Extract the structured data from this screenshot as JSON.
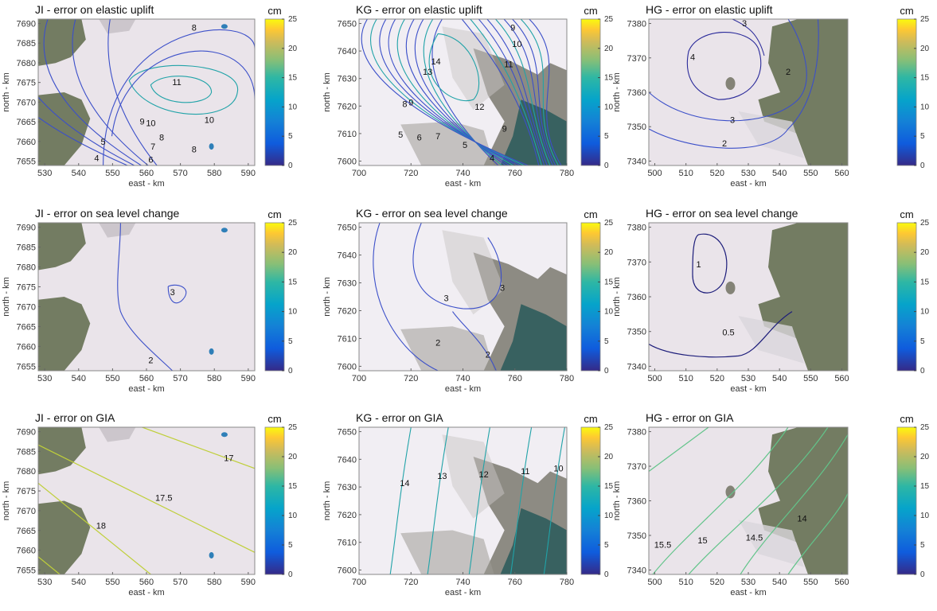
{
  "figure": {
    "colorbar": {
      "unit": "cm",
      "ticks": [
        "0",
        "5",
        "10",
        "15",
        "20",
        "25"
      ],
      "range": [
        0,
        25
      ]
    },
    "colors": {
      "low": "#3e1fa0",
      "mid": "#20a3a8",
      "high": "#f5e61a",
      "land": "#5e6a4a",
      "ice": "#eae4ea",
      "sea": "#2f5c5c"
    },
    "panels": [
      {
        "title": "JI - error on elastic uplift",
        "xlabel": "east - km",
        "ylabel": "north - km",
        "xticks": [
          "530",
          "540",
          "550",
          "560",
          "570",
          "580",
          "590"
        ],
        "yticks": [
          "7690",
          "7685",
          "7680",
          "7675",
          "7670",
          "7665",
          "7660",
          "7655"
        ],
        "landscape": "ji",
        "contour_labels": [
          "8",
          "11",
          "9",
          "10",
          "10",
          "8",
          "8",
          "7",
          "5",
          "4",
          "6"
        ]
      },
      {
        "title": "KG - error on elastic uplift",
        "xlabel": "east - km",
        "ylabel": "north - km",
        "xticks": [
          "700",
          "720",
          "740",
          "760",
          "780"
        ],
        "yticks": [
          "7650",
          "7640",
          "7630",
          "7620",
          "7610",
          "7600"
        ],
        "landscape": "kg",
        "contour_labels": [
          "9",
          "10",
          "11",
          "14",
          "13",
          "12",
          "8",
          "9",
          "5",
          "6",
          "7",
          "4",
          "5",
          "9"
        ]
      },
      {
        "title": "HG - error on elastic uplift",
        "xlabel": "east - km",
        "ylabel": "north - km",
        "xticks": [
          "500",
          "510",
          "520",
          "530",
          "540",
          "550",
          "560"
        ],
        "yticks": [
          "7380",
          "7370",
          "7360",
          "7350",
          "7340"
        ],
        "landscape": "hg",
        "contour_labels": [
          "3",
          "4",
          "2",
          "3",
          "2"
        ]
      },
      {
        "title": "JI - error on sea level change",
        "xlabel": "east - km",
        "ylabel": "north - km",
        "xticks": [
          "530",
          "540",
          "550",
          "560",
          "570",
          "580",
          "590"
        ],
        "yticks": [
          "7690",
          "7685",
          "7680",
          "7675",
          "7670",
          "7665",
          "7660",
          "7655"
        ],
        "landscape": "ji",
        "contour_labels": [
          "3",
          "2"
        ]
      },
      {
        "title": "KG - error on sea level change",
        "xlabel": "east - km",
        "ylabel": "north - km",
        "xticks": [
          "700",
          "720",
          "740",
          "760",
          "780"
        ],
        "yticks": [
          "7650",
          "7640",
          "7630",
          "7620",
          "7610",
          "7600"
        ],
        "landscape": "kg",
        "contour_labels": [
          "3",
          "3",
          "2",
          "2"
        ]
      },
      {
        "title": "HG - error on sea level change",
        "xlabel": "east - km",
        "ylabel": "north - km",
        "xticks": [
          "500",
          "510",
          "520",
          "530",
          "540",
          "550",
          "560"
        ],
        "yticks": [
          "7380",
          "7370",
          "7360",
          "7350",
          "7340"
        ],
        "landscape": "hg",
        "contour_labels": [
          "1",
          "0.5"
        ]
      },
      {
        "title": "JI - error on GIA",
        "xlabel": "east - km",
        "ylabel": "north - km",
        "xticks": [
          "530",
          "540",
          "550",
          "560",
          "570",
          "580",
          "590"
        ],
        "yticks": [
          "7690",
          "7685",
          "7680",
          "7675",
          "7670",
          "7665",
          "7660",
          "7655"
        ],
        "landscape": "ji",
        "contour_labels": [
          "17",
          "17.5",
          "18"
        ]
      },
      {
        "title": "KG - error on GIA",
        "xlabel": "east - km",
        "ylabel": "north - km",
        "xticks": [
          "700",
          "720",
          "740",
          "760",
          "780"
        ],
        "yticks": [
          "7650",
          "7640",
          "7630",
          "7620",
          "7610",
          "7600"
        ],
        "landscape": "kg",
        "contour_labels": [
          "14",
          "13",
          "12",
          "11",
          "10"
        ]
      },
      {
        "title": "HG - error on GIA",
        "xlabel": "east - km",
        "ylabel": "north - km",
        "xticks": [
          "500",
          "510",
          "520",
          "530",
          "540",
          "550",
          "560"
        ],
        "yticks": [
          "7380",
          "7370",
          "7360",
          "7350",
          "7340"
        ],
        "landscape": "hg",
        "contour_labels": [
          "15.5",
          "15",
          "14.5",
          "14"
        ]
      }
    ]
  }
}
